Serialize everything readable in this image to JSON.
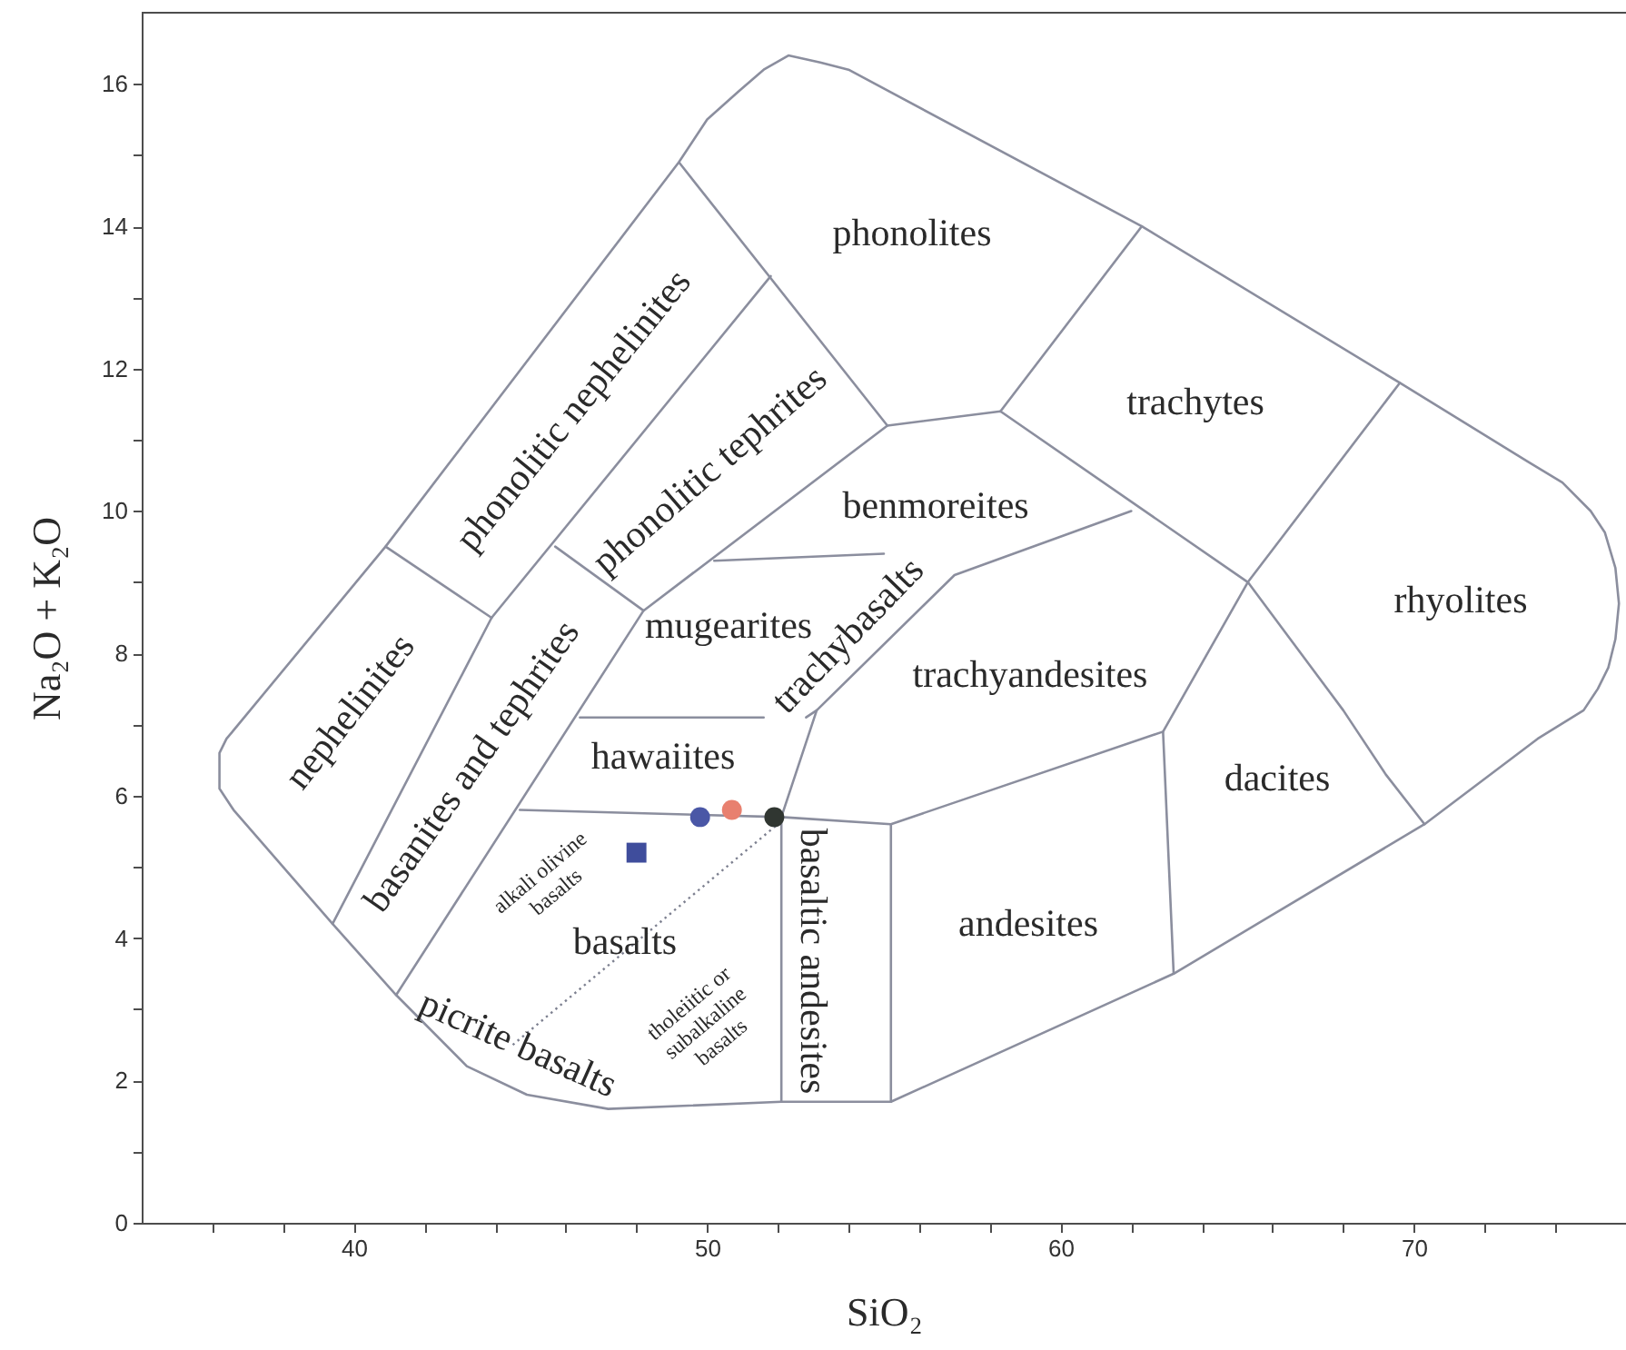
{
  "chart_data": {
    "type": "scatter",
    "xlabel": "SiO₂",
    "ylabel": "Na₂O + K₂O",
    "xlim": [
      34,
      76
    ],
    "ylim": [
      0,
      17
    ],
    "xticks": [
      {
        "value": 36,
        "label": null
      },
      {
        "value": 38,
        "label": null
      },
      40,
      {
        "value": 42,
        "label": null
      },
      {
        "value": 44,
        "label": null
      },
      {
        "value": 46,
        "label": null
      },
      {
        "value": 48,
        "label": null
      },
      50,
      {
        "value": 52,
        "label": null
      },
      {
        "value": 54,
        "label": null
      },
      {
        "value": 56,
        "label": null
      },
      {
        "value": 58,
        "label": null
      },
      60,
      {
        "value": 62,
        "label": null
      },
      {
        "value": 64,
        "label": null
      },
      {
        "value": 66,
        "label": null
      },
      {
        "value": 68,
        "label": null
      },
      70,
      {
        "value": 72,
        "label": null
      },
      {
        "value": 74,
        "label": null
      }
    ],
    "yticks": [
      0,
      {
        "value": 1,
        "label": null
      },
      2,
      {
        "value": 3,
        "label": null
      },
      4,
      {
        "value": 5,
        "label": null
      },
      6,
      {
        "value": 7,
        "label": null
      },
      8,
      {
        "value": 9,
        "label": null
      },
      10,
      {
        "value": 11,
        "label": null
      },
      12,
      {
        "value": 13,
        "label": null
      },
      14,
      {
        "value": 15,
        "label": null
      },
      16
    ],
    "series": [
      {
        "type": "line",
        "color": "#8b8e9e",
        "x": [
          55.1,
          49.2,
          50.0,
          50.9,
          51.6,
          52.3,
          53.2,
          54.0,
          62.3,
          69.6,
          73.2,
          74.2,
          75.0,
          75.4,
          75.7,
          75.8,
          75.7,
          75.5,
          75.2,
          74.8,
          73.5,
          70.3,
          63.2,
          55.2,
          52.1,
          47.2,
          44.9,
          43.2,
          41.2,
          39.4,
          36.6,
          36.2,
          36.2,
          36.4,
          40.9,
          49.2
        ],
        "values": [
          11.2,
          14.9,
          15.5,
          15.9,
          16.2,
          16.4,
          16.3,
          16.2,
          14.0,
          11.8,
          10.7,
          10.4,
          10.0,
          9.7,
          9.2,
          8.7,
          8.2,
          7.8,
          7.5,
          7.2,
          6.8,
          5.6,
          3.5,
          1.7,
          1.7,
          1.6,
          1.8,
          2.2,
          3.2,
          4.2,
          5.8,
          6.1,
          6.6,
          6.8,
          9.5,
          14.9
        ]
      },
      {
        "type": "line",
        "color": "#8b8e9e",
        "x": [
          45.7,
          48.2,
          55.1,
          58.3,
          65.3,
          66.5,
          68.0,
          69.2,
          70.3
        ],
        "values": [
          9.5,
          8.6,
          11.2,
          11.4,
          9.0,
          8.2,
          7.2,
          6.3,
          5.6
        ]
      },
      {
        "type": "line",
        "color": "#8b8e9e",
        "x": [
          58.3,
          62.3
        ],
        "values": [
          11.4,
          14.0
        ]
      },
      {
        "type": "line",
        "color": "#8b8e9e",
        "x": [
          40.9,
          43.9
        ],
        "values": [
          9.5,
          8.5
        ]
      },
      {
        "type": "line",
        "color": "#8b8e9e",
        "x": [
          39.4,
          43.9,
          51.8
        ],
        "values": [
          4.2,
          8.5,
          13.3
        ]
      },
      {
        "type": "line",
        "color": "#8b8e9e",
        "x": [
          48.2,
          41.2
        ],
        "values": [
          8.6,
          3.2
        ]
      },
      {
        "type": "line",
        "color": "#8b8e9e",
        "x": [
          50.2,
          55.0
        ],
        "values": [
          9.3,
          9.4
        ]
      },
      {
        "type": "line",
        "color": "#8b8e9e",
        "x": [
          46.4,
          51.6
        ],
        "values": [
          7.1,
          7.1
        ]
      },
      {
        "type": "line",
        "color": "#8b8e9e",
        "x": [
          52.8,
          53.1
        ],
        "values": [
          7.1,
          7.2
        ]
      },
      {
        "type": "line",
        "color": "#8b8e9e",
        "x": [
          69.6,
          65.3,
          62.9,
          63.2
        ],
        "values": [
          11.8,
          9.0,
          6.9,
          3.5
        ]
      },
      {
        "type": "line",
        "color": "#8b8e9e",
        "x": [
          44.7,
          52.1,
          55.2,
          62.9
        ],
        "values": [
          5.8,
          5.7,
          5.6,
          6.9
        ]
      },
      {
        "type": "line",
        "color": "#8b8e9e",
        "x": [
          62.0,
          57.0,
          53.1,
          52.1,
          52.1
        ],
        "values": [
          10.0,
          9.1,
          7.2,
          5.7,
          1.7
        ]
      },
      {
        "type": "line",
        "color": "#8b8e9e",
        "x": [
          55.2,
          55.2
        ],
        "values": [
          5.6,
          1.7
        ]
      },
      {
        "type": "line",
        "color": "#7d8090",
        "line_style": "dotted",
        "x": [
          44.5,
          52.0
        ],
        "values": [
          2.5,
          5.6
        ]
      },
      {
        "marker": "circle",
        "x": [
          49.8,
          50.7,
          51.9
        ],
        "values": [
          5.7,
          5.8,
          5.7
        ],
        "colors": [
          "#4a57a6",
          "#e8806f",
          "#303631"
        ]
      },
      {
        "marker": "square",
        "x": [
          48.0
        ],
        "values": [
          5.2
        ],
        "color": "#3f4d9c"
      }
    ],
    "annotations": [
      "phonolites",
      "trachytes",
      "phonolitic nephelinites",
      "phonolitic tephrites",
      "benmoreites",
      "rhyolites",
      "nephelinites",
      "basanites and tephrites",
      "mugearites",
      "trachybasalts",
      "trachyandesites",
      "hawaiites",
      "dacites",
      "alkali olivine\nbasalts",
      "basalts",
      "tholeiitic or\nsubalkaline\nbasalts",
      "basaltic andesites",
      "andesites",
      "picrite basalts"
    ]
  }
}
